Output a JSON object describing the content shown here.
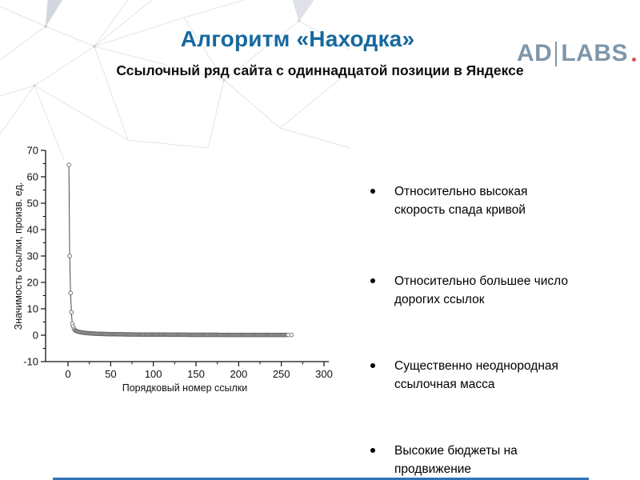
{
  "slide": {
    "title": "Алгоритм «Находка»",
    "title_color": "#16699f",
    "subtitle": "Ссылочный ряд сайта с одиннадцатой позиции в Яндексе"
  },
  "logo": {
    "part1": "AD",
    "part2": "LABS",
    "color": "#7e96aa",
    "mark_color": "#d94f4f"
  },
  "chart_data": {
    "type": "scatter",
    "title": "",
    "xlabel": "Порядковый номер ссылки",
    "ylabel": "Значимость ссылки, произв. ед.",
    "xlim": [
      -26,
      306
    ],
    "ylim": [
      -10,
      70
    ],
    "xticks": [
      0,
      50,
      100,
      150,
      200,
      250,
      300
    ],
    "yticks": [
      -10,
      0,
      10,
      20,
      30,
      40,
      50,
      60,
      70
    ],
    "minor_x": [
      25,
      75,
      125,
      175,
      225,
      275
    ],
    "minor_y": [
      -5,
      5,
      15,
      25,
      35,
      45,
      55,
      65
    ],
    "grid": false,
    "legend": "none",
    "head_points": [
      [
        1,
        64.5
      ],
      [
        2,
        30
      ],
      [
        3,
        16
      ],
      [
        4,
        8.7
      ],
      [
        5,
        4.4
      ],
      [
        6,
        3.3
      ],
      [
        7,
        2.4
      ]
    ],
    "tail": {
      "from": 8,
      "to": 258,
      "y_start": 1.9,
      "y_end": 0.13,
      "decay_exp": 0.85
    },
    "last_point": [
      262,
      0.1
    ],
    "marker": {
      "fill": "#ffffff",
      "stroke": "#6b6b6b"
    },
    "line_color": "#4a4a4a",
    "axis_color": "#111111"
  },
  "bullets": {
    "items": [
      "Относительно высокая скорость спада кривой",
      "Относительно большее число дорогих ссылок",
      "Существенно неоднородная ссылочная масса",
      "Высокие бюджеты на продвижение"
    ]
  },
  "footer": {
    "line_color": "#2e73b5"
  }
}
